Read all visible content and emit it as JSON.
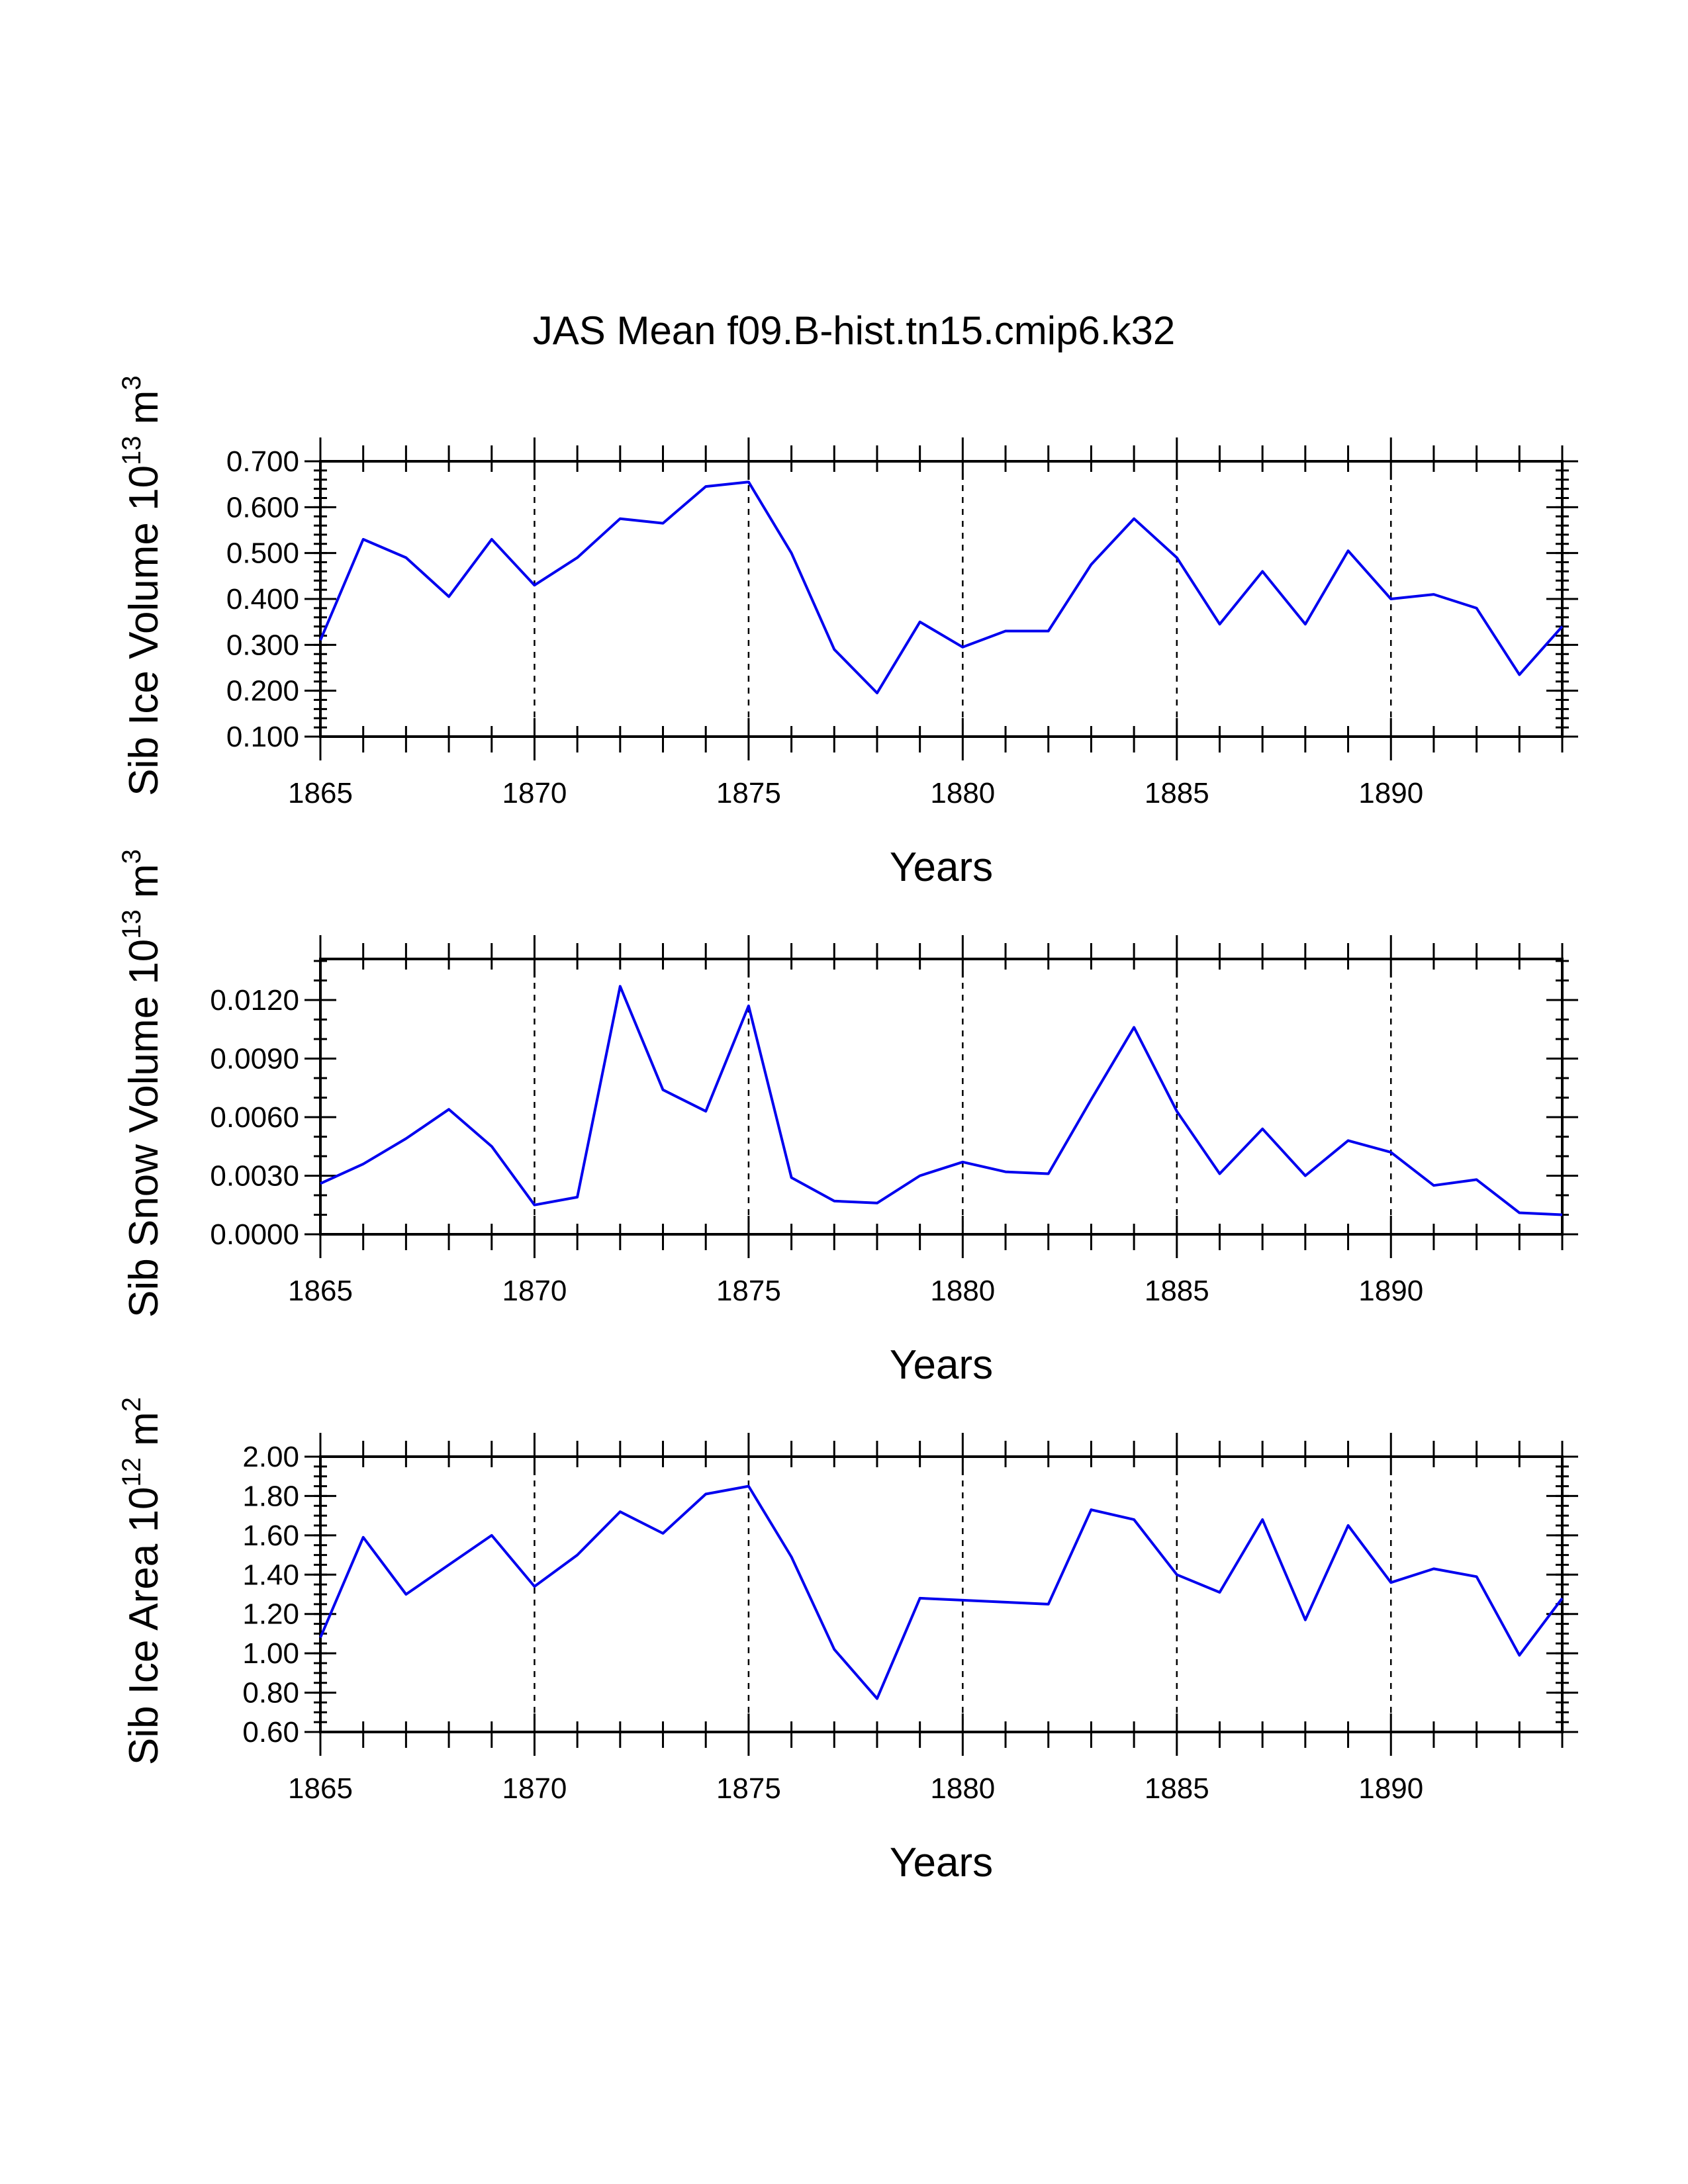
{
  "title": "JAS Mean f09.B-hist.tn15.cmip6.k32",
  "colors": {
    "series": "#0000ee",
    "axes": "#000000"
  },
  "chart_data": [
    {
      "type": "line",
      "id": "ice-volume",
      "ylabel": {
        "main": "Sib Ice Volume 10",
        "sup": "13",
        "unit": " m",
        "unit_sup": "3"
      },
      "xlabel": "Years",
      "xlim": [
        1865,
        1894
      ],
      "ylim": [
        0.1,
        0.7
      ],
      "x_ticks": [
        1865,
        1870,
        1875,
        1880,
        1885,
        1890
      ],
      "x_tick_labels": [
        "1865",
        "1870",
        "1875",
        "1880",
        "1885",
        "1890"
      ],
      "y_ticks": [
        0.1,
        0.2,
        0.3,
        0.4,
        0.5,
        0.6,
        0.7
      ],
      "y_tick_labels": [
        "0.100",
        "0.200",
        "0.300",
        "0.400",
        "0.500",
        "0.600",
        "0.700"
      ],
      "y_minor_step": 0.02,
      "grid_x": [
        1870,
        1875,
        1880,
        1885,
        1890
      ],
      "x": [
        1865,
        1866,
        1867,
        1868,
        1869,
        1870,
        1871,
        1872,
        1873,
        1874,
        1875,
        1876,
        1877,
        1878,
        1879,
        1880,
        1881,
        1882,
        1883,
        1884,
        1885,
        1886,
        1887,
        1888,
        1889,
        1890,
        1891,
        1892,
        1893,
        1894
      ],
      "values": [
        0.31,
        0.53,
        0.49,
        0.405,
        0.53,
        0.43,
        0.49,
        0.575,
        0.565,
        0.645,
        0.655,
        0.5,
        0.29,
        0.195,
        0.35,
        0.295,
        0.33,
        0.33,
        0.475,
        0.575,
        0.49,
        0.345,
        0.46,
        0.345,
        0.505,
        0.4,
        0.41,
        0.38,
        0.235,
        0.34
      ]
    },
    {
      "type": "line",
      "id": "snow-volume",
      "ylabel": {
        "main": "Sib Snow Volume 10",
        "sup": "13",
        "unit": " m",
        "unit_sup": "3"
      },
      "xlabel": "Years",
      "xlim": [
        1865,
        1894
      ],
      "ylim": [
        0.0,
        0.0141
      ],
      "x_ticks": [
        1865,
        1870,
        1875,
        1880,
        1885,
        1890
      ],
      "x_tick_labels": [
        "1865",
        "1870",
        "1875",
        "1880",
        "1885",
        "1890"
      ],
      "y_ticks": [
        0.0,
        0.003,
        0.006,
        0.009,
        0.012
      ],
      "y_tick_labels": [
        "0.0000",
        "0.0030",
        "0.0060",
        "0.0090",
        "0.0120"
      ],
      "y_minor_step": 0.001,
      "grid_x": [
        1870,
        1875,
        1880,
        1885,
        1890
      ],
      "x": [
        1865,
        1866,
        1867,
        1868,
        1869,
        1870,
        1871,
        1872,
        1873,
        1874,
        1875,
        1876,
        1877,
        1878,
        1879,
        1880,
        1881,
        1882,
        1883,
        1884,
        1885,
        1886,
        1887,
        1888,
        1889,
        1890,
        1891,
        1892,
        1893,
        1894
      ],
      "values": [
        0.0026,
        0.0036,
        0.0049,
        0.0064,
        0.0045,
        0.0015,
        0.0019,
        0.0127,
        0.0074,
        0.0063,
        0.0117,
        0.0029,
        0.0017,
        0.0016,
        0.003,
        0.0037,
        0.0032,
        0.0031,
        0.0069,
        0.0106,
        0.0063,
        0.0031,
        0.0054,
        0.003,
        0.0048,
        0.0042,
        0.0025,
        0.0028,
        0.0011,
        0.001
      ]
    },
    {
      "type": "line",
      "id": "ice-area",
      "ylabel": {
        "main": "Sib Ice Area 10",
        "sup": "12",
        "unit": " m",
        "unit_sup": "2"
      },
      "xlabel": "Years",
      "xlim": [
        1865,
        1894
      ],
      "ylim": [
        0.6,
        2.0
      ],
      "x_ticks": [
        1865,
        1870,
        1875,
        1880,
        1885,
        1890
      ],
      "x_tick_labels": [
        "1865",
        "1870",
        "1875",
        "1880",
        "1885",
        "1890"
      ],
      "y_ticks": [
        0.6,
        0.8,
        1.0,
        1.2,
        1.4,
        1.6,
        1.8,
        2.0
      ],
      "y_tick_labels": [
        "0.60",
        "0.80",
        "1.00",
        "1.20",
        "1.40",
        "1.60",
        "1.80",
        "2.00"
      ],
      "y_minor_step": 0.05,
      "grid_x": [
        1870,
        1875,
        1880,
        1885,
        1890
      ],
      "x": [
        1865,
        1866,
        1867,
        1868,
        1869,
        1870,
        1871,
        1872,
        1873,
        1874,
        1875,
        1876,
        1877,
        1878,
        1879,
        1880,
        1881,
        1882,
        1883,
        1884,
        1885,
        1886,
        1887,
        1888,
        1889,
        1890,
        1891,
        1892,
        1893,
        1894
      ],
      "values": [
        1.08,
        1.59,
        1.3,
        1.45,
        1.6,
        1.34,
        1.5,
        1.72,
        1.61,
        1.81,
        1.85,
        1.49,
        1.02,
        0.77,
        1.28,
        1.27,
        1.26,
        1.25,
        1.73,
        1.68,
        1.4,
        1.31,
        1.68,
        1.17,
        1.65,
        1.36,
        1.43,
        1.39,
        0.99,
        1.28
      ]
    }
  ]
}
